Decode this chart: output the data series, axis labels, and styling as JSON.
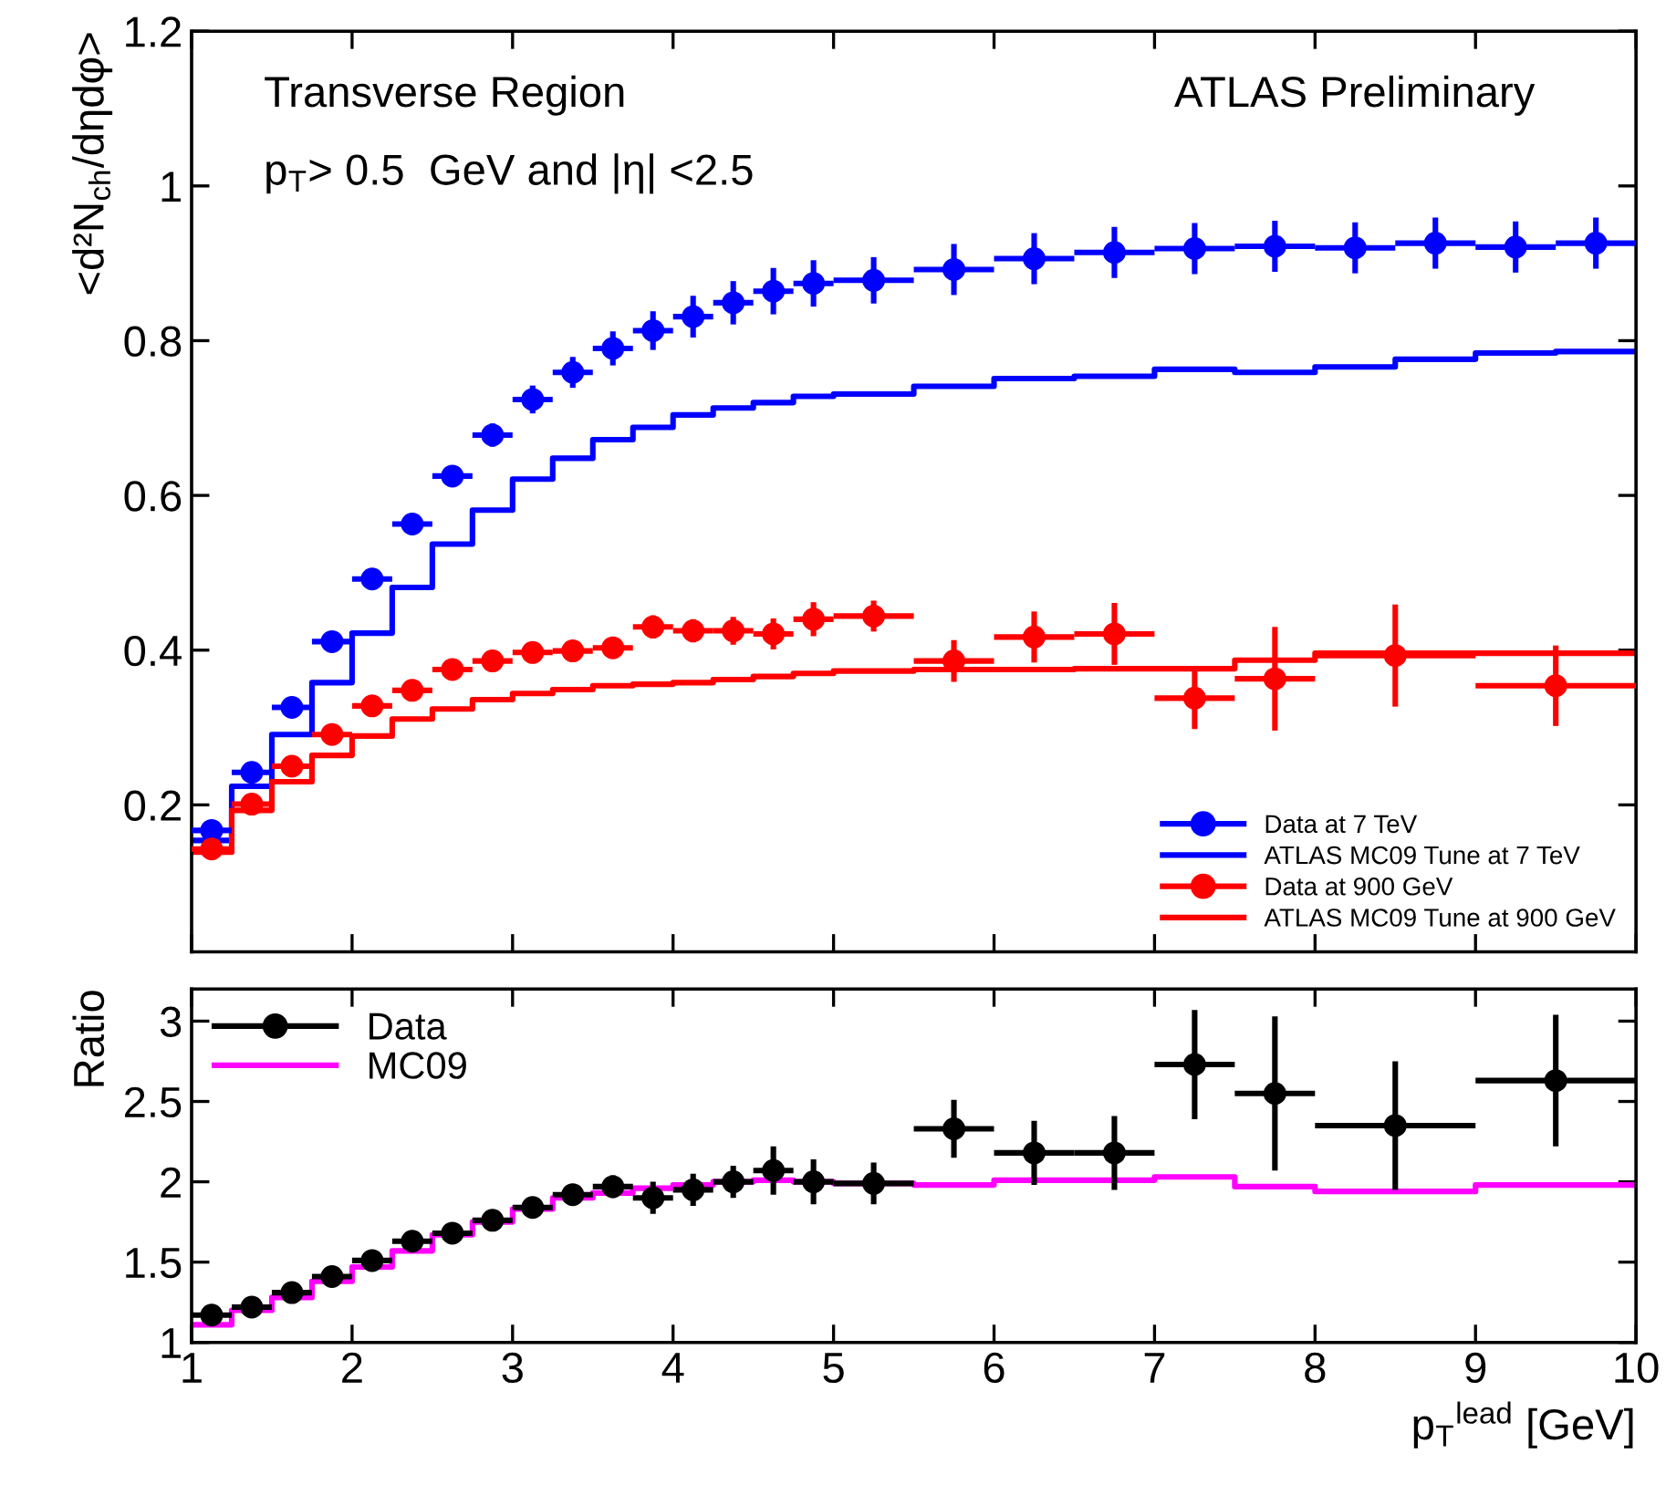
{
  "chart_data": [
    {
      "type": "scatter",
      "ylabel": "<d²N$_{ch}$/dηdφ>",
      "xlim": [
        1,
        10
      ],
      "ylim": [
        0.01,
        1.2
      ],
      "xticks": [
        1,
        2,
        3,
        4,
        5,
        6,
        7,
        8,
        9,
        10
      ],
      "yticks": [
        0.2,
        0.4,
        0.6,
        0.8,
        1,
        1.2
      ],
      "tick_labels": "y",
      "grid": false,
      "legend": "bottom right",
      "annotations": [
        "Transverse Region",
        "ATLAS Preliminary",
        "p$_{T}$> 0.5  GeV and |η| <2.5"
      ],
      "series": [
        {
          "name": "Data at 7 TeV",
          "marker": "circle",
          "color": "#0000ff",
          "x": [
            1.125,
            1.375,
            1.625,
            1.875,
            2.125,
            2.375,
            2.625,
            2.875,
            3.125,
            3.375,
            3.625,
            3.875,
            4.125,
            4.375,
            4.625,
            4.875,
            5.25,
            5.75,
            6.25,
            6.75,
            7.25,
            7.75,
            8.25,
            8.75,
            9.25,
            9.75
          ],
          "values": [
            0.167,
            0.242,
            0.326,
            0.411,
            0.492,
            0.563,
            0.625,
            0.678,
            0.724,
            0.759,
            0.79,
            0.813,
            0.831,
            0.849,
            0.864,
            0.874,
            0.878,
            0.892,
            0.906,
            0.914,
            0.919,
            0.922,
            0.92,
            0.926,
            0.921,
            0.926
          ],
          "errors": [
            0.008,
            0.008,
            0.01,
            0.01,
            0.01,
            0.012,
            0.012,
            0.015,
            0.018,
            0.02,
            0.022,
            0.025,
            0.027,
            0.028,
            0.03,
            0.03,
            0.03,
            0.033,
            0.033,
            0.033,
            0.033,
            0.033,
            0.033,
            0.033,
            0.033,
            0.033
          ],
          "xerrors": [
            0.125,
            0.125,
            0.125,
            0.125,
            0.125,
            0.125,
            0.125,
            0.125,
            0.125,
            0.125,
            0.125,
            0.125,
            0.125,
            0.125,
            0.125,
            0.125,
            0.25,
            0.25,
            0.25,
            0.25,
            0.25,
            0.25,
            0.25,
            0.25,
            0.25,
            0.25
          ]
        },
        {
          "name": "ATLAS MC09 Tune at 7 TeV",
          "type": "step",
          "marker": "none",
          "color": "#0000ff",
          "x": [
            1,
            1.25,
            1.5,
            1.75,
            2,
            2.25,
            2.5,
            2.75,
            3,
            3.25,
            3.5,
            3.75,
            4,
            4.25,
            4.5,
            4.75,
            5,
            5.5,
            6,
            6.5,
            7,
            7.5,
            8,
            8.5,
            9,
            9.5,
            10
          ],
          "values": [
            0.154,
            0.224,
            0.291,
            0.358,
            0.422,
            0.481,
            0.537,
            0.581,
            0.621,
            0.648,
            0.672,
            0.688,
            0.704,
            0.713,
            0.72,
            0.728,
            0.731,
            0.741,
            0.751,
            0.754,
            0.763,
            0.759,
            0.766,
            0.776,
            0.784,
            0.786,
            0.786
          ]
        },
        {
          "name": "Data at 900 GeV",
          "marker": "circle",
          "color": "#ff0000",
          "x": [
            1.125,
            1.375,
            1.625,
            1.875,
            2.125,
            2.375,
            2.625,
            2.875,
            3.125,
            3.375,
            3.625,
            3.875,
            4.125,
            4.375,
            4.625,
            4.875,
            5.25,
            5.75,
            6.25,
            6.75,
            7.25,
            7.75,
            8.5,
            9.5
          ],
          "values": [
            0.143,
            0.201,
            0.25,
            0.291,
            0.328,
            0.348,
            0.375,
            0.386,
            0.397,
            0.399,
            0.403,
            0.43,
            0.425,
            0.425,
            0.421,
            0.44,
            0.444,
            0.386,
            0.417,
            0.421,
            0.338,
            0.363,
            0.393,
            0.354
          ],
          "errors": [
            0.005,
            0.006,
            0.006,
            0.007,
            0.008,
            0.008,
            0.01,
            0.01,
            0.01,
            0.012,
            0.012,
            0.015,
            0.015,
            0.018,
            0.02,
            0.022,
            0.02,
            0.027,
            0.033,
            0.04,
            0.04,
            0.067,
            0.066,
            0.052
          ],
          "xerrors": [
            0.125,
            0.125,
            0.125,
            0.125,
            0.125,
            0.125,
            0.125,
            0.125,
            0.125,
            0.125,
            0.125,
            0.125,
            0.125,
            0.125,
            0.125,
            0.125,
            0.25,
            0.25,
            0.25,
            0.25,
            0.25,
            0.25,
            0.5,
            0.5
          ]
        },
        {
          "name": "ATLAS MC09 Tune at 900 GeV",
          "type": "step",
          "marker": "none",
          "color": "#ff0000",
          "x": [
            1,
            1.25,
            1.5,
            1.75,
            2,
            2.25,
            2.5,
            2.75,
            3,
            3.25,
            3.5,
            3.75,
            4,
            4.25,
            4.5,
            4.75,
            5,
            5.5,
            6,
            6.5,
            7,
            7.5,
            8,
            9,
            10
          ],
          "values": [
            0.139,
            0.193,
            0.23,
            0.264,
            0.289,
            0.311,
            0.324,
            0.336,
            0.344,
            0.349,
            0.354,
            0.356,
            0.358,
            0.362,
            0.366,
            0.37,
            0.373,
            0.375,
            0.375,
            0.376,
            0.376,
            0.387,
            0.396,
            0.396,
            0.396
          ]
        }
      ]
    },
    {
      "type": "scatter",
      "ylabel": "Ratio",
      "xlabel": "p$_{T}$$^{lead}$ [GeV]",
      "xlim": [
        1,
        10
      ],
      "ylim": [
        1,
        3.2
      ],
      "xticks": [
        1,
        2,
        3,
        4,
        5,
        6,
        7,
        8,
        9,
        10
      ],
      "yticks": [
        1,
        1.5,
        2,
        2.5,
        3
      ],
      "grid": false,
      "legend": "top left",
      "series": [
        {
          "name": "Data",
          "marker": "circle",
          "color": "#000000",
          "x": [
            1.125,
            1.375,
            1.625,
            1.875,
            2.125,
            2.375,
            2.625,
            2.875,
            3.125,
            3.375,
            3.625,
            3.875,
            4.125,
            4.375,
            4.625,
            4.875,
            5.25,
            5.75,
            6.25,
            6.75,
            7.25,
            7.75,
            8.5,
            9.5
          ],
          "values": [
            1.17,
            1.22,
            1.31,
            1.41,
            1.51,
            1.63,
            1.68,
            1.76,
            1.84,
            1.92,
            1.97,
            1.9,
            1.95,
            2.0,
            2.07,
            2.0,
            1.99,
            2.33,
            2.18,
            2.18,
            2.73,
            2.55,
            2.35,
            2.63
          ],
          "errors": [
            0.03,
            0.03,
            0.03,
            0.03,
            0.03,
            0.04,
            0.04,
            0.05,
            0.05,
            0.06,
            0.07,
            0.1,
            0.1,
            0.1,
            0.15,
            0.14,
            0.13,
            0.18,
            0.2,
            0.23,
            0.34,
            0.48,
            0.4,
            0.41
          ],
          "xerrors": [
            0.125,
            0.125,
            0.125,
            0.125,
            0.125,
            0.125,
            0.125,
            0.125,
            0.125,
            0.125,
            0.125,
            0.125,
            0.125,
            0.125,
            0.125,
            0.125,
            0.25,
            0.25,
            0.25,
            0.25,
            0.25,
            0.25,
            0.5,
            0.5
          ]
        },
        {
          "name": "MC09",
          "type": "step",
          "marker": "none",
          "color": "#ff00ff",
          "x": [
            1,
            1.25,
            1.5,
            1.75,
            2,
            2.25,
            2.5,
            2.75,
            3,
            3.25,
            3.5,
            3.75,
            4,
            4.25,
            4.5,
            4.75,
            5,
            5.5,
            6,
            6.5,
            7,
            7.5,
            8,
            9,
            10
          ],
          "values": [
            1.11,
            1.2,
            1.28,
            1.38,
            1.47,
            1.57,
            1.67,
            1.75,
            1.83,
            1.9,
            1.93,
            1.96,
            1.98,
            2.0,
            2.01,
            2.0,
            1.99,
            1.98,
            2.01,
            2.01,
            2.03,
            1.97,
            1.94,
            1.98,
            1.98
          ]
        }
      ]
    }
  ]
}
